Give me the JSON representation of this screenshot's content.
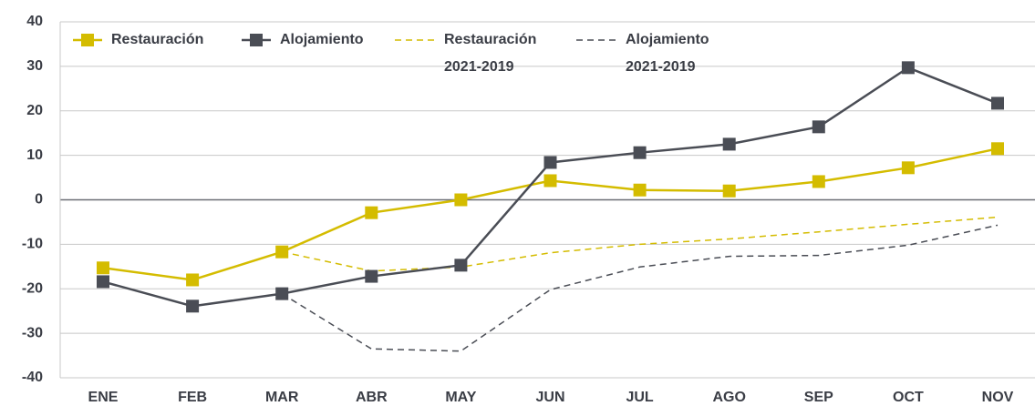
{
  "chart_data": {
    "type": "line",
    "categories": [
      "ENE",
      "FEB",
      "MAR",
      "ABR",
      "MAY",
      "JUN",
      "JUL",
      "AGO",
      "SEP",
      "OCT",
      "NOV"
    ],
    "series": [
      {
        "name": "Restauración",
        "color": "#d4bc00",
        "dashed": false,
        "markers": true,
        "values": [
          -15.3,
          -18,
          -11.7,
          -2.9,
          0,
          4.3,
          2.2,
          2,
          4.1,
          7.2,
          11.5
        ]
      },
      {
        "name": "Alojamiento",
        "color": "#4a4d55",
        "dashed": false,
        "markers": true,
        "values": [
          -18.4,
          -23.9,
          -21.1,
          -17.2,
          -14.7,
          8.4,
          10.6,
          12.5,
          16.4,
          29.7,
          21.7
        ]
      },
      {
        "name": "Restauración 2021-2019",
        "color": "#d4bc00",
        "dashed": true,
        "markers": false,
        "values": [
          null,
          null,
          -11.7,
          -16,
          -15.1,
          -11.9,
          -10,
          -8.8,
          -7.2,
          -5.5,
          -3.9
        ]
      },
      {
        "name": "Alojamiento 2021-2019",
        "color": "#4a4d55",
        "dashed": true,
        "markers": false,
        "values": [
          null,
          null,
          -21.1,
          -33.5,
          -34,
          -20.2,
          -15.1,
          -12.7,
          -12.5,
          -10.2,
          -5.7
        ]
      }
    ],
    "ylim": [
      -40,
      40
    ],
    "yticks": [
      -40,
      -30,
      -20,
      -10,
      0,
      10,
      20,
      30,
      40
    ],
    "grid": true
  }
}
